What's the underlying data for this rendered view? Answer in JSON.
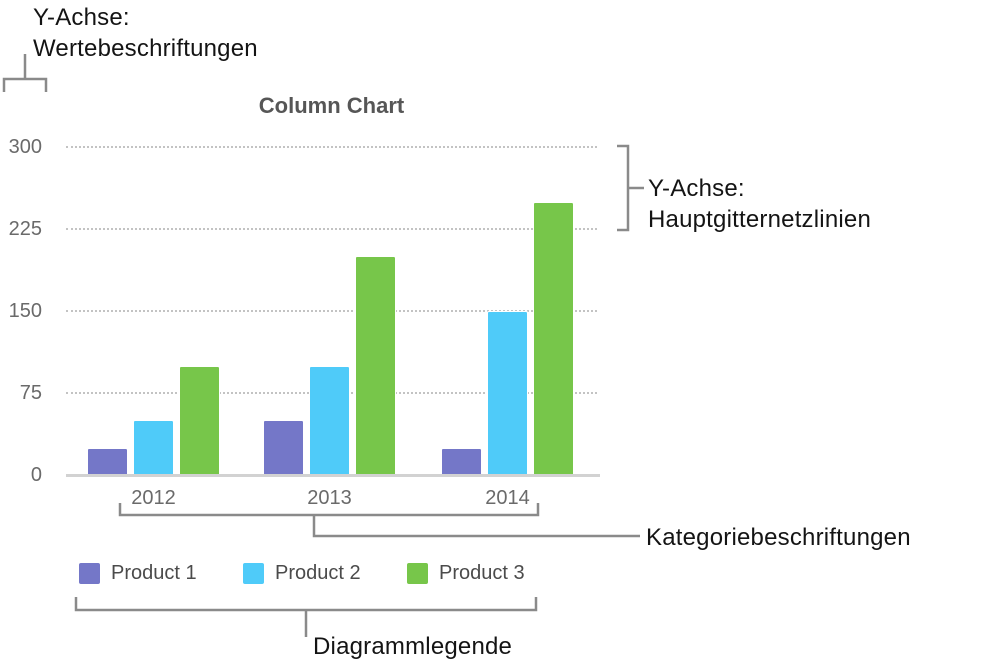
{
  "callouts": {
    "value_labels": {
      "line1": "Y-Achse:",
      "line2": "Wertebeschriftungen"
    },
    "gridlines": {
      "line1": "Y-Achse:",
      "line2": "Hauptgitternetzlinien"
    },
    "category_labels": "Kategoriebeschriftungen",
    "legend": "Diagrammlegende"
  },
  "chart_data": {
    "type": "bar",
    "title": "Column Chart",
    "categories": [
      "2012",
      "2013",
      "2014"
    ],
    "series": [
      {
        "name": "Product 1",
        "color": "#7477C8",
        "values": [
          25,
          50,
          25
        ]
      },
      {
        "name": "Product 2",
        "color": "#4FCBF9",
        "values": [
          50,
          100,
          150
        ]
      },
      {
        "name": "Product 3",
        "color": "#77C64A",
        "values": [
          100,
          200,
          250
        ]
      }
    ],
    "y_ticks": [
      0,
      75,
      150,
      225,
      300
    ],
    "ylim": [
      0,
      300
    ],
    "grid": "horizontal-dotted",
    "legend_position": "bottom",
    "xlabel": "",
    "ylabel": ""
  },
  "colors": {
    "bracket": "#8a8a8a",
    "annotation_text": "#141414",
    "axis_text": "#6a6a6a",
    "title_text": "#565656",
    "gridline": "#c3c3c3",
    "baseline": "#d2d2d2"
  }
}
